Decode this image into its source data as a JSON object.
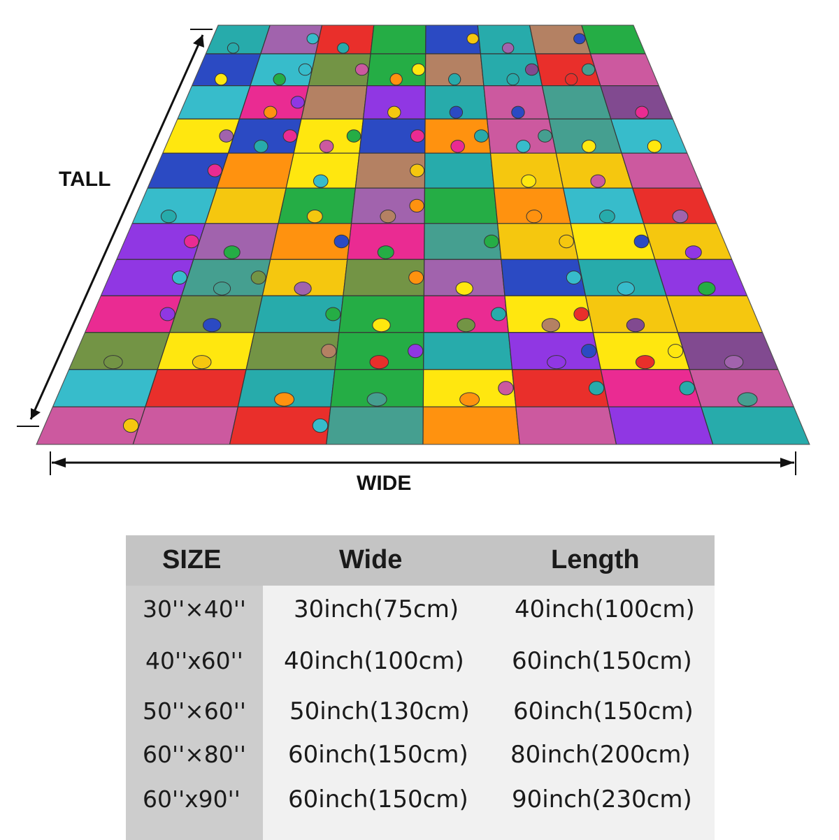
{
  "dimensions": {
    "tall_label": "TALL",
    "wide_label": "WIDE"
  },
  "illustration": {
    "subject": "jigsaw-puzzle-pattern-blanket",
    "palette": [
      "#e91e8c",
      "#ffe600",
      "#1e3fc0",
      "#18a83a",
      "#e8231e",
      "#8a2be2",
      "#ff8c00",
      "#1aa6a6",
      "#9c5aa8",
      "#6b8e3a",
      "#b07a5a",
      "#3a9a8a",
      "#c94f9a",
      "#7a3f8a",
      "#2bb8c8",
      "#f5c400"
    ]
  },
  "size_table": {
    "headers": [
      "SIZE",
      "Wide",
      "Length"
    ],
    "rows": [
      {
        "size": "30''×40''",
        "wide": "30inch(75cm)",
        "length": "40inch(100cm)"
      },
      {
        "size": "40''x60''",
        "wide": "40inch(100cm)",
        "length": "60inch(150cm)"
      },
      {
        "size": "50''×60''",
        "wide": "50inch(130cm)",
        "length": "60inch(150cm)"
      },
      {
        "size": "60''×80''",
        "wide": "60inch(150cm)",
        "length": "80inch(200cm)"
      },
      {
        "size": "60''x90''",
        "wide": "60inch(150cm)",
        "length": "90inch(230cm)"
      }
    ]
  }
}
